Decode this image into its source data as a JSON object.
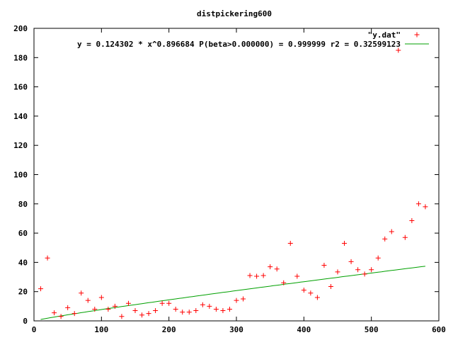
{
  "chart_data": {
    "type": "scatter",
    "title": "distpickering600",
    "xlabel": "",
    "ylabel": "",
    "xlim": [
      0,
      600
    ],
    "ylim": [
      0,
      200
    ],
    "x_ticks": [
      0,
      100,
      200,
      300,
      400,
      500,
      600
    ],
    "y_ticks": [
      0,
      20,
      40,
      60,
      80,
      100,
      120,
      140,
      160,
      180,
      200
    ],
    "grid": false,
    "legend_position": "top-right",
    "series": [
      {
        "name": "\"y.dat\"",
        "kind": "points",
        "marker": "+",
        "color": "#ff0000",
        "x": [
          10,
          20,
          30,
          40,
          50,
          60,
          70,
          80,
          90,
          100,
          110,
          120,
          130,
          140,
          150,
          160,
          170,
          180,
          190,
          200,
          210,
          220,
          230,
          240,
          250,
          260,
          270,
          280,
          290,
          300,
          310,
          320,
          330,
          340,
          350,
          360,
          370,
          380,
          390,
          400,
          410,
          420,
          430,
          440,
          450,
          460,
          470,
          480,
          490,
          500,
          510,
          520,
          530,
          540,
          550,
          560,
          570,
          580
        ],
        "y": [
          22,
          43,
          5.5,
          3,
          9,
          5,
          19,
          14,
          8,
          16,
          8,
          10,
          3,
          12,
          7,
          4,
          5,
          7,
          12,
          12,
          8,
          6,
          6,
          7,
          11,
          10,
          8,
          7,
          8,
          14,
          15,
          31,
          30.5,
          31,
          37,
          35.5,
          26,
          53,
          30.5,
          21,
          19,
          16,
          38,
          23.5,
          33.5,
          53,
          40.5,
          35,
          32,
          35,
          43,
          56,
          61,
          185,
          57,
          68.5,
          80,
          78
        ]
      },
      {
        "name": "y = 0.124302 * x^0.896684 P(beta>0.000000) = 0.999999 r2 = 0.32599123",
        "kind": "line",
        "color": "#00a000",
        "a": 0.124302,
        "b": 0.896684,
        "x_range": [
          10,
          580
        ]
      }
    ]
  }
}
